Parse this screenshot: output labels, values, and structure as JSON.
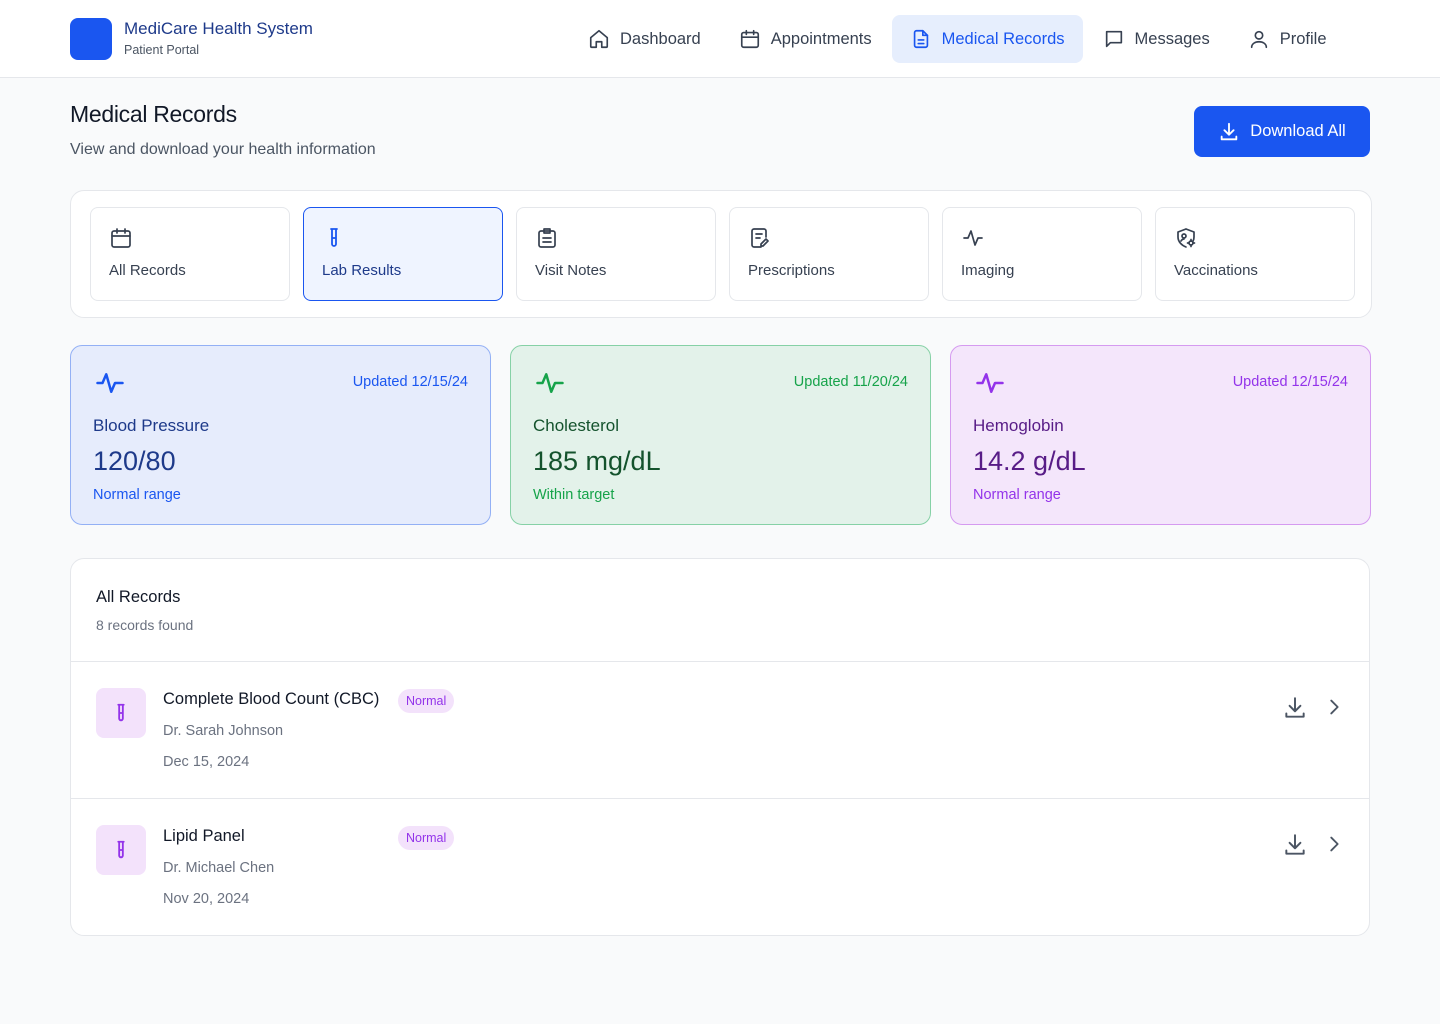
{
  "brand": {
    "name": "MediCare Health System",
    "subtitle": "Patient Portal",
    "color": "#1a56f0"
  },
  "nav": [
    {
      "label": "Dashboard",
      "icon": "home-icon",
      "active": false
    },
    {
      "label": "Appointments",
      "icon": "calendar-icon",
      "active": false
    },
    {
      "label": "Medical Records",
      "icon": "document-icon",
      "active": true
    },
    {
      "label": "Messages",
      "icon": "message-icon",
      "active": false
    },
    {
      "label": "Profile",
      "icon": "user-icon",
      "active": false
    }
  ],
  "page": {
    "title": "Medical Records",
    "subtitle": "View and download your health information",
    "download_all_label": "Download All"
  },
  "categories": [
    {
      "label": "All Records",
      "icon": "calendar-icon",
      "active": false
    },
    {
      "label": "Lab Results",
      "icon": "test-tube-icon",
      "active": true
    },
    {
      "label": "Visit Notes",
      "icon": "clipboard-icon",
      "active": false
    },
    {
      "label": "Prescriptions",
      "icon": "prescription-icon",
      "active": false
    },
    {
      "label": "Imaging",
      "icon": "activity-icon",
      "active": false
    },
    {
      "label": "Vaccinations",
      "icon": "shield-gear-icon",
      "active": false
    }
  ],
  "metrics": [
    {
      "name": "Blood Pressure",
      "value": "120/80",
      "note": "Normal range",
      "updated": "Updated 12/15/24",
      "color": "#1a56f0"
    },
    {
      "name": "Cholesterol",
      "value": "185 mg/dL",
      "note": "Within target",
      "updated": "Updated 11/20/24",
      "color": "#16a34a"
    },
    {
      "name": "Hemoglobin",
      "value": "14.2 g/dL",
      "note": "Normal range",
      "updated": "Updated 12/15/24",
      "color": "#9333ea"
    }
  ],
  "records": {
    "title": "All Records",
    "count": "8 records found",
    "items": [
      {
        "name": "Complete Blood Count (CBC)",
        "status": "Normal",
        "doctor": "Dr. Sarah Johnson",
        "date": "Dec 15, 2024",
        "icon": "test-tube-icon"
      },
      {
        "name": "Lipid Panel",
        "status": "Normal",
        "doctor": "Dr. Michael Chen",
        "date": "Nov 20, 2024",
        "icon": "test-tube-icon"
      }
    ]
  }
}
